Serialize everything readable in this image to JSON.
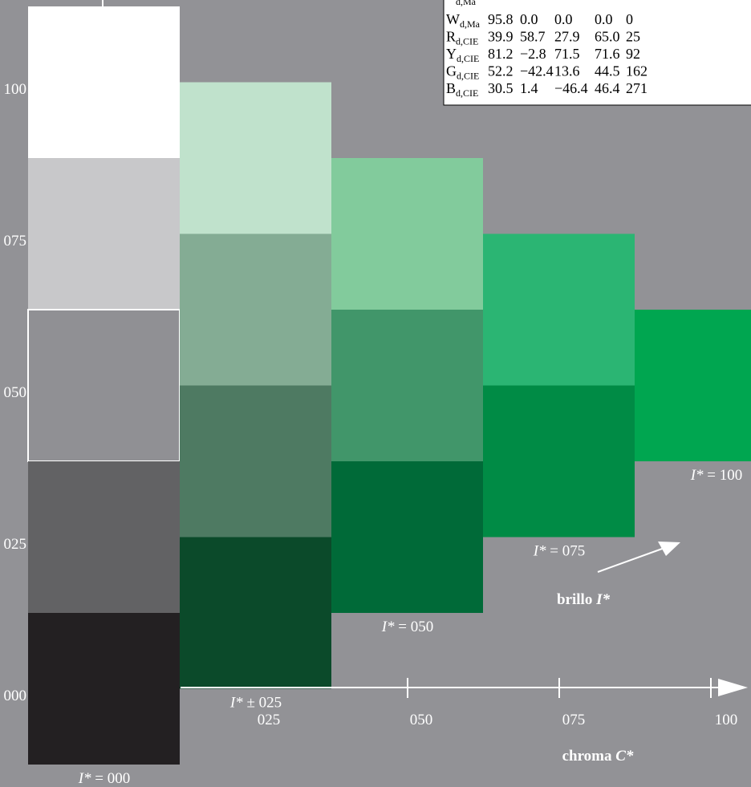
{
  "y_axis_labels": [
    "100",
    "075",
    "050",
    "025",
    "000"
  ],
  "x_axis_labels": [
    "025",
    "050",
    "075",
    "100"
  ],
  "x_axis_title": {
    "text": "chroma ",
    "symbol": "C*"
  },
  "arrow_label": {
    "text": "brillo ",
    "symbol": "I*"
  },
  "columns": [
    {
      "label": {
        "symbol": "I*",
        "value": "= 000"
      },
      "colors": [
        "#ffffff",
        "#c8c8ca",
        "#909094",
        "#626264",
        "#232022"
      ]
    },
    {
      "label": {
        "symbol": "I*",
        "value": "± 025"
      },
      "colors": [
        "#c0e2cc",
        "#84ac94",
        "#4e7a62",
        "#0b4a2a"
      ]
    },
    {
      "label": {
        "symbol": "I*",
        "value": "= 050"
      },
      "colors": [
        "#82cb9c",
        "#41966a",
        "#006a38"
      ]
    },
    {
      "label": {
        "symbol": "I*",
        "value": "= 075"
      },
      "colors": [
        "#2bb573",
        "#008b45"
      ]
    },
    {
      "label": {
        "symbol": "I*",
        "value": "= 100"
      },
      "colors": [
        "#00a650"
      ]
    }
  ],
  "table": {
    "header_fragment": "d,Ma",
    "rows": [
      {
        "name": "W",
        "sub": "d,Ma",
        "cells": [
          "95.8",
          "0.0",
          "0.0",
          "0.0",
          "0"
        ]
      },
      {
        "name": "R",
        "sub": "d,CIE",
        "cells": [
          "39.9",
          "58.7",
          "27.9",
          "65.0",
          "25"
        ]
      },
      {
        "name": "Y",
        "sub": "d,CIE",
        "cells": [
          "81.2",
          "−2.8",
          "71.5",
          "71.6",
          "92"
        ]
      },
      {
        "name": "G",
        "sub": "d,CIE",
        "cells": [
          "52.2",
          "−42.4",
          "13.6",
          "44.5",
          "162"
        ]
      },
      {
        "name": "B",
        "sub": "d,CIE",
        "cells": [
          "30.5",
          "1.4",
          "−46.4",
          "46.4",
          "271"
        ]
      }
    ]
  }
}
